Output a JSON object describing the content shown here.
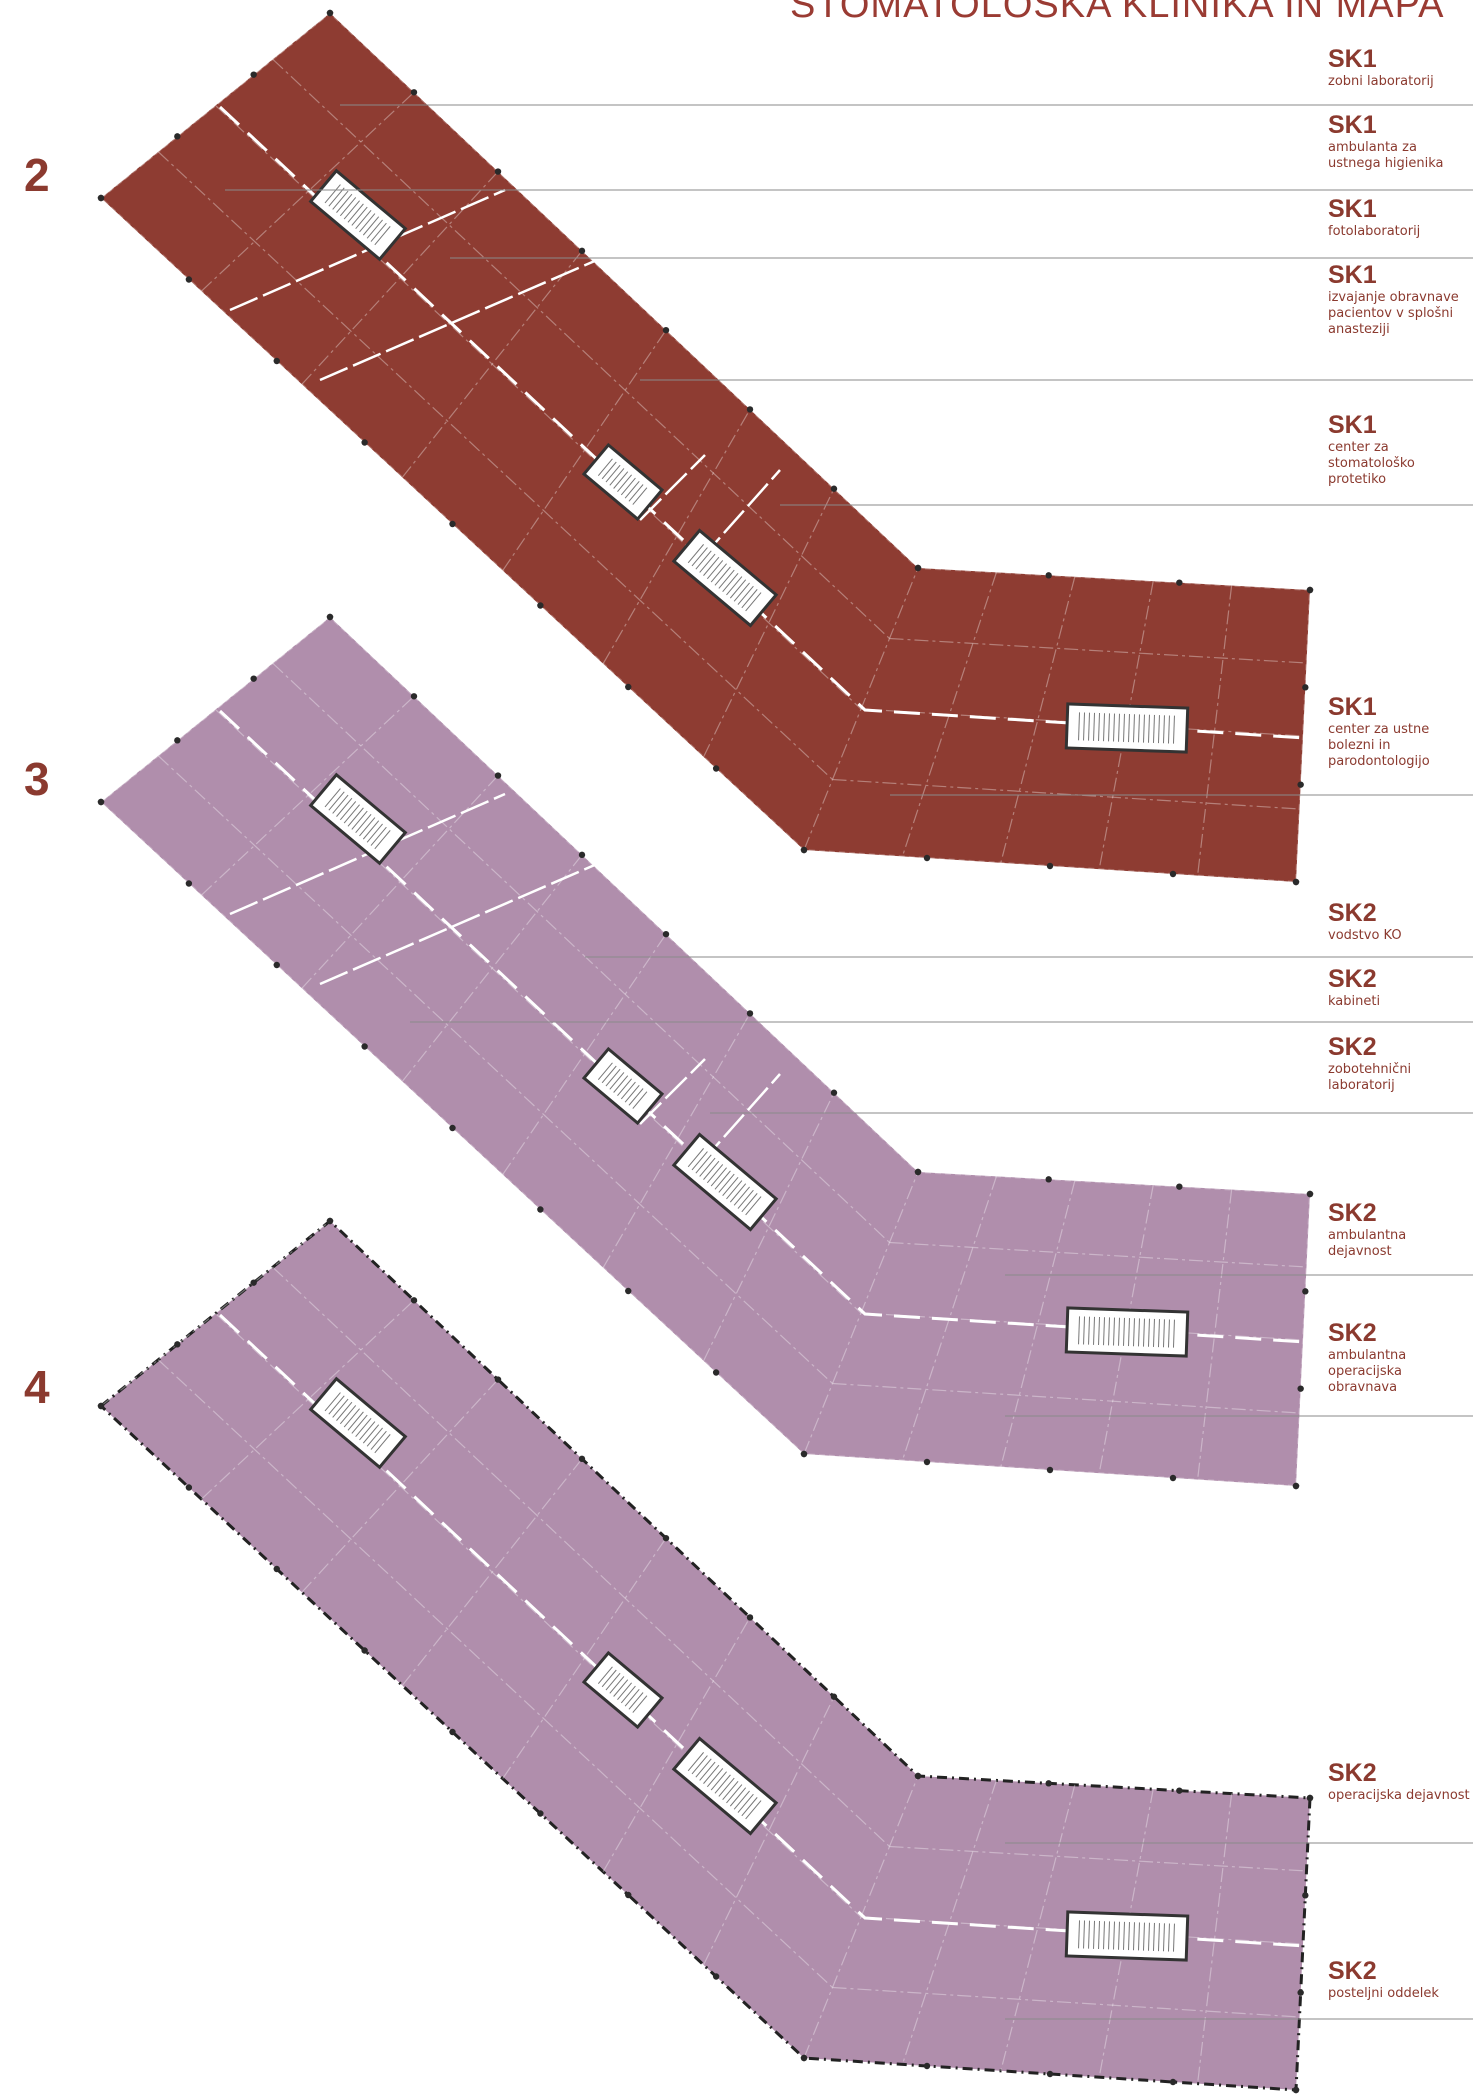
{
  "header": {
    "title": "STOMATOLOŠKA KLINIKA IN MAPA"
  },
  "colors": {
    "floor2": "#8e3c32",
    "floor3_4": "#b08eac",
    "label_text": "#8b3a2f",
    "leader_line": "#8a8a8a"
  },
  "floors": [
    {
      "number": "2",
      "labels": [
        {
          "code": "SK1",
          "text": "zobni laboratorij"
        },
        {
          "code": "SK1",
          "text": "ambulanta za ustnega higienika"
        },
        {
          "code": "SK1",
          "text": "fotolaboratorij"
        },
        {
          "code": "SK1",
          "text": "izvajanje obravnave pacientov v splošni anasteziji"
        },
        {
          "code": "SK1",
          "text": "center za stomatološko protetiko"
        },
        {
          "code": "SK1",
          "text": "center za ustne bolezni in parodontologijo"
        }
      ]
    },
    {
      "number": "3",
      "labels": [
        {
          "code": "SK2",
          "text": "vodstvo KO"
        },
        {
          "code": "SK2",
          "text": "kabineti"
        },
        {
          "code": "SK2",
          "text": "zobotehnični laboratorij"
        },
        {
          "code": "SK2",
          "text": "ambulantna dejavnost"
        },
        {
          "code": "SK2",
          "text": "ambulantna operacijska obravnava"
        }
      ]
    },
    {
      "number": "4",
      "labels": [
        {
          "code": "SK2",
          "text": "operacijska dejavnost"
        },
        {
          "code": "SK2",
          "text": "posteljni oddelek"
        }
      ]
    }
  ]
}
